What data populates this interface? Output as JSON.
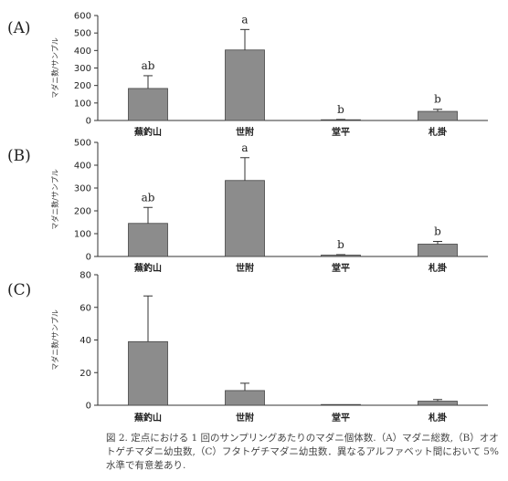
{
  "caption": "図 2. 定点における 1 回のサンプリングあたりのマダニ個体数.（A）マダニ総数,（B）オオトゲチマダニ幼虫数,（C）フタトゲチマダニ幼虫数．異なるアルファベット間において 5% 水準で有意差あり.",
  "chart_data": [
    {
      "type": "bar",
      "panel_label": "(A)",
      "ylabel": "マダニ数/サンプル",
      "ylim": [
        0,
        600
      ],
      "yticks": [
        0,
        100,
        200,
        300,
        400,
        500,
        600
      ],
      "categories": [
        "蕪釣山",
        "世附",
        "堂平",
        "札掛"
      ],
      "values": [
        183,
        403,
        4,
        52
      ],
      "errors": [
        73,
        117,
        2,
        12
      ],
      "letters": [
        "ab",
        "a",
        "b",
        "b"
      ],
      "bar_color": "#8c8c8c"
    },
    {
      "type": "bar",
      "panel_label": "(B)",
      "ylabel": "マダニ数/サンプル",
      "ylim": [
        0,
        500
      ],
      "yticks": [
        0,
        100,
        200,
        300,
        400,
        500
      ],
      "categories": [
        "蕪釣山",
        "世附",
        "堂平",
        "札掛"
      ],
      "values": [
        145,
        333,
        6,
        54
      ],
      "errors": [
        70,
        100,
        2,
        12
      ],
      "letters": [
        "ab",
        "a",
        "b",
        "b"
      ],
      "bar_color": "#8c8c8c"
    },
    {
      "type": "bar",
      "panel_label": "(C)",
      "ylabel": "マダニ数/サンプル",
      "ylim": [
        0,
        80
      ],
      "yticks": [
        0,
        20,
        40,
        60,
        80
      ],
      "categories": [
        "蕪釣山",
        "世附",
        "堂平",
        "札掛"
      ],
      "values": [
        39,
        9,
        0.2,
        2.5
      ],
      "errors": [
        28,
        4.5,
        0,
        1
      ],
      "letters": [
        "",
        "",
        "",
        ""
      ],
      "bar_color": "#8c8c8c"
    }
  ]
}
